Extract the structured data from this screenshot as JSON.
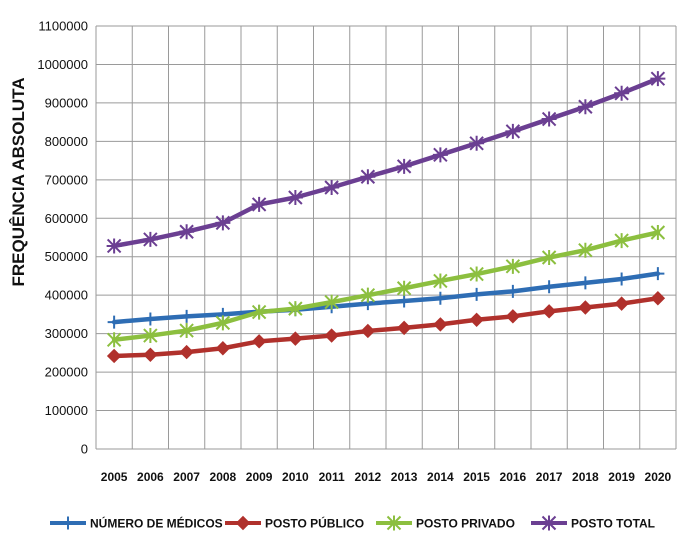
{
  "chart_data": {
    "type": "line",
    "title": "",
    "xlabel": "",
    "ylabel": "FREQUÊNCIA ABSOLUTA",
    "ylim": [
      0,
      1100000
    ],
    "yticks": [
      "0",
      "100000",
      "200000",
      "300000",
      "400000",
      "500000",
      "600000",
      "700000",
      "800000",
      "900000",
      "1000000",
      "1100000"
    ],
    "x": [
      "2005",
      "2006",
      "2007",
      "2008",
      "2009",
      "2010",
      "2011",
      "2012",
      "2013",
      "2014",
      "2015",
      "2016",
      "2017",
      "2018",
      "2019",
      "2020"
    ],
    "grid": true,
    "legend_position": "bottom",
    "series": [
      {
        "name": "NÚMERO DE MÉDICOS",
        "color": "#2e6db4",
        "marker": "plus",
        "values": [
          330000,
          338000,
          345000,
          350000,
          357000,
          362000,
          370000,
          378000,
          385000,
          392000,
          402000,
          410000,
          422000,
          432000,
          442000,
          456000
        ]
      },
      {
        "name": "POSTO PÚBLICO",
        "color": "#b0312c",
        "marker": "diamond",
        "values": [
          242000,
          245000,
          252000,
          262000,
          280000,
          287000,
          295000,
          307000,
          315000,
          324000,
          336000,
          345000,
          358000,
          368000,
          378000,
          392000
        ]
      },
      {
        "name": "POSTO PRIVADO",
        "color": "#8cbf3f",
        "marker": "asterisk",
        "values": [
          284000,
          295000,
          308000,
          328000,
          356000,
          365000,
          382000,
          400000,
          418000,
          437000,
          455000,
          475000,
          498000,
          517000,
          542000,
          563000
        ]
      },
      {
        "name": "POSTO TOTAL",
        "color": "#6b3f92",
        "marker": "star",
        "values": [
          528000,
          545000,
          565000,
          588000,
          636000,
          654000,
          680000,
          708000,
          735000,
          765000,
          795000,
          826000,
          858000,
          890000,
          925000,
          963000
        ]
      }
    ]
  }
}
